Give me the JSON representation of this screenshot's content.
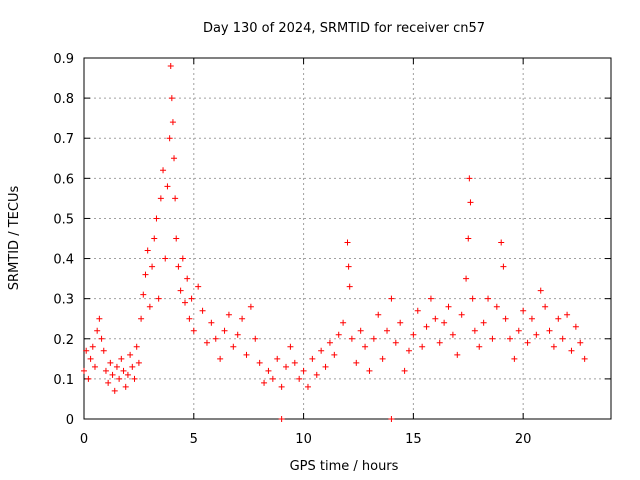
{
  "chart_data": {
    "type": "scatter",
    "title": "Day 130 of 2024, SRMTID for receiver cn57",
    "xlabel": "GPS time / hours",
    "ylabel": "SRMTID / TECUs",
    "xlim": [
      0,
      24
    ],
    "ylim": [
      0,
      0.9
    ],
    "xticks": [
      0,
      5,
      10,
      15,
      20
    ],
    "xtick_labels": [
      "0",
      "5",
      "10",
      "15",
      "20"
    ],
    "yticks": [
      0,
      0.1,
      0.2,
      0.3,
      0.4,
      0.5,
      0.6,
      0.7,
      0.8,
      0.9
    ],
    "ytick_labels": [
      "0",
      "0.1",
      "0.2",
      "0.3",
      "0.4",
      "0.5",
      "0.6",
      "0.7",
      "0.8",
      "0.9"
    ],
    "grid": true,
    "marker": "+",
    "series": [
      {
        "name": "SRMTID",
        "color": "#ff0000",
        "points": [
          [
            0.0,
            0.12
          ],
          [
            0.1,
            0.17
          ],
          [
            0.2,
            0.1
          ],
          [
            0.3,
            0.15
          ],
          [
            0.4,
            0.18
          ],
          [
            0.5,
            0.13
          ],
          [
            0.6,
            0.22
          ],
          [
            0.7,
            0.25
          ],
          [
            0.8,
            0.2
          ],
          [
            0.9,
            0.17
          ],
          [
            1.0,
            0.12
          ],
          [
            1.1,
            0.09
          ],
          [
            1.2,
            0.14
          ],
          [
            1.3,
            0.11
          ],
          [
            1.4,
            0.07
          ],
          [
            1.5,
            0.13
          ],
          [
            1.6,
            0.1
          ],
          [
            1.7,
            0.15
          ],
          [
            1.8,
            0.12
          ],
          [
            1.9,
            0.08
          ],
          [
            2.0,
            0.11
          ],
          [
            2.1,
            0.16
          ],
          [
            2.2,
            0.13
          ],
          [
            2.3,
            0.1
          ],
          [
            2.4,
            0.18
          ],
          [
            2.5,
            0.14
          ],
          [
            2.6,
            0.25
          ],
          [
            2.7,
            0.31
          ],
          [
            2.8,
            0.36
          ],
          [
            2.9,
            0.42
          ],
          [
            3.0,
            0.28
          ],
          [
            3.1,
            0.38
          ],
          [
            3.2,
            0.45
          ],
          [
            3.3,
            0.5
          ],
          [
            3.4,
            0.3
          ],
          [
            3.5,
            0.55
          ],
          [
            3.6,
            0.62
          ],
          [
            3.7,
            0.4
          ],
          [
            3.8,
            0.58
          ],
          [
            3.9,
            0.7
          ],
          [
            3.95,
            0.88
          ],
          [
            4.0,
            0.8
          ],
          [
            4.05,
            0.74
          ],
          [
            4.1,
            0.65
          ],
          [
            4.15,
            0.55
          ],
          [
            4.2,
            0.45
          ],
          [
            4.3,
            0.38
          ],
          [
            4.4,
            0.32
          ],
          [
            4.5,
            0.4
          ],
          [
            4.6,
            0.29
          ],
          [
            4.7,
            0.35
          ],
          [
            4.8,
            0.25
          ],
          [
            4.9,
            0.3
          ],
          [
            5.0,
            0.22
          ],
          [
            5.2,
            0.33
          ],
          [
            5.4,
            0.27
          ],
          [
            5.6,
            0.19
          ],
          [
            5.8,
            0.24
          ],
          [
            6.0,
            0.2
          ],
          [
            6.2,
            0.15
          ],
          [
            6.4,
            0.22
          ],
          [
            6.6,
            0.26
          ],
          [
            6.8,
            0.18
          ],
          [
            7.0,
            0.21
          ],
          [
            7.2,
            0.25
          ],
          [
            7.4,
            0.16
          ],
          [
            7.6,
            0.28
          ],
          [
            7.8,
            0.2
          ],
          [
            8.0,
            0.14
          ],
          [
            8.2,
            0.09
          ],
          [
            8.4,
            0.12
          ],
          [
            8.6,
            0.1
          ],
          [
            8.8,
            0.15
          ],
          [
            9.0,
            0.08
          ],
          [
            9.2,
            0.13
          ],
          [
            9.4,
            0.18
          ],
          [
            9.6,
            0.14
          ],
          [
            9.8,
            0.1
          ],
          [
            10.0,
            0.12
          ],
          [
            10.2,
            0.08
          ],
          [
            10.4,
            0.15
          ],
          [
            10.6,
            0.11
          ],
          [
            10.8,
            0.17
          ],
          [
            11.0,
            0.13
          ],
          [
            11.2,
            0.19
          ],
          [
            11.4,
            0.16
          ],
          [
            11.6,
            0.21
          ],
          [
            11.8,
            0.24
          ],
          [
            12.0,
            0.44
          ],
          [
            12.05,
            0.38
          ],
          [
            12.1,
            0.33
          ],
          [
            12.2,
            0.2
          ],
          [
            12.4,
            0.14
          ],
          [
            12.6,
            0.22
          ],
          [
            12.8,
            0.18
          ],
          [
            13.0,
            0.12
          ],
          [
            13.2,
            0.2
          ],
          [
            13.4,
            0.26
          ],
          [
            13.6,
            0.15
          ],
          [
            13.8,
            0.22
          ],
          [
            14.0,
            0.3
          ],
          [
            14.2,
            0.19
          ],
          [
            14.4,
            0.24
          ],
          [
            14.6,
            0.12
          ],
          [
            14.8,
            0.17
          ],
          [
            15.0,
            0.21
          ],
          [
            15.2,
            0.27
          ],
          [
            15.4,
            0.18
          ],
          [
            15.6,
            0.23
          ],
          [
            15.8,
            0.3
          ],
          [
            16.0,
            0.25
          ],
          [
            16.2,
            0.19
          ],
          [
            16.4,
            0.24
          ],
          [
            16.6,
            0.28
          ],
          [
            16.8,
            0.21
          ],
          [
            17.0,
            0.16
          ],
          [
            17.2,
            0.26
          ],
          [
            17.4,
            0.35
          ],
          [
            17.5,
            0.45
          ],
          [
            17.55,
            0.6
          ],
          [
            17.6,
            0.54
          ],
          [
            17.7,
            0.3
          ],
          [
            17.8,
            0.22
          ],
          [
            18.0,
            0.18
          ],
          [
            18.2,
            0.24
          ],
          [
            18.4,
            0.3
          ],
          [
            18.6,
            0.2
          ],
          [
            18.8,
            0.28
          ],
          [
            19.0,
            0.44
          ],
          [
            19.1,
            0.38
          ],
          [
            19.2,
            0.25
          ],
          [
            19.4,
            0.2
          ],
          [
            19.6,
            0.15
          ],
          [
            19.8,
            0.22
          ],
          [
            20.0,
            0.27
          ],
          [
            20.2,
            0.19
          ],
          [
            20.4,
            0.25
          ],
          [
            20.6,
            0.21
          ],
          [
            20.8,
            0.32
          ],
          [
            21.0,
            0.28
          ],
          [
            21.2,
            0.22
          ],
          [
            21.4,
            0.18
          ],
          [
            21.6,
            0.25
          ],
          [
            21.8,
            0.2
          ],
          [
            22.0,
            0.26
          ],
          [
            22.2,
            0.17
          ],
          [
            22.4,
            0.23
          ],
          [
            22.6,
            0.19
          ],
          [
            22.8,
            0.15
          ],
          [
            9.0,
            0.0
          ],
          [
            14.0,
            0.0
          ]
        ]
      }
    ]
  }
}
